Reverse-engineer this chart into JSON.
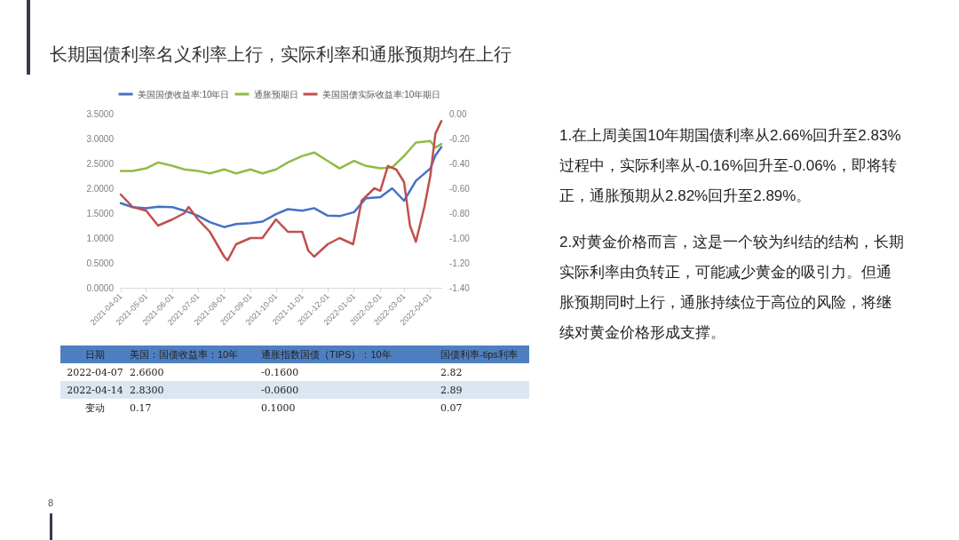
{
  "chart_data": [
    {
      "type": "line",
      "title": "长期国债利率名义利率上行，实际利率和通胀预期均在上行",
      "x": [
        "2021-04-01",
        "2021-04-15",
        "2021-05-01",
        "2021-05-15",
        "2021-06-01",
        "2021-06-15",
        "2021-07-01",
        "2021-07-15",
        "2021-08-01",
        "2021-08-15",
        "2021-09-01",
        "2021-09-15",
        "2021-10-01",
        "2021-10-15",
        "2021-11-01",
        "2021-11-15",
        "2021-12-01",
        "2021-12-15",
        "2022-01-01",
        "2022-01-15",
        "2022-02-01",
        "2022-02-15",
        "2022-03-01",
        "2022-03-15",
        "2022-04-01",
        "2022-04-07",
        "2022-04-14"
      ],
      "series": [
        {
          "name": "美国国债收益率:10年日",
          "color": "#4472c4",
          "values": [
            1.7,
            1.62,
            1.6,
            1.63,
            1.62,
            1.55,
            1.45,
            1.32,
            1.22,
            1.28,
            1.3,
            1.33,
            1.48,
            1.58,
            1.55,
            1.6,
            1.45,
            1.44,
            1.52,
            1.8,
            1.82,
            2.0,
            1.75,
            2.15,
            2.4,
            2.66,
            2.83
          ]
        },
        {
          "name": "通胀预期日",
          "color": "#8fbc45",
          "values": [
            2.35,
            2.35,
            2.4,
            2.52,
            2.45,
            2.38,
            2.35,
            2.3,
            2.38,
            2.3,
            2.38,
            2.3,
            2.38,
            2.52,
            2.65,
            2.72,
            2.55,
            2.4,
            2.55,
            2.45,
            2.4,
            2.42,
            2.65,
            2.92,
            2.95,
            2.82,
            2.89
          ]
        },
        {
          "name": "美国国债实际收益率:10年期日",
          "color": "#c0504d",
          "axis": "y2",
          "x": [
            "2021-04-01",
            "2021-04-15",
            "2021-05-01",
            "2021-05-15",
            "2021-06-01",
            "2021-06-15",
            "2021-06-20",
            "2021-07-01",
            "2021-07-15",
            "2021-08-01",
            "2021-08-05",
            "2021-08-15",
            "2021-09-01",
            "2021-09-15",
            "2021-10-01",
            "2021-10-15",
            "2021-11-01",
            "2021-11-08",
            "2021-11-15",
            "2021-12-01",
            "2021-12-15",
            "2021-12-31",
            "2022-01-10",
            "2022-01-25",
            "2022-02-01",
            "2022-02-10",
            "2022-02-20",
            "2022-03-01",
            "2022-03-08",
            "2022-03-15",
            "2022-03-25",
            "2022-04-01",
            "2022-04-07",
            "2022-04-14"
          ],
          "values": [
            -0.65,
            -0.75,
            -0.78,
            -0.9,
            -0.85,
            -0.8,
            -0.75,
            -0.85,
            -0.95,
            -1.15,
            -1.18,
            -1.05,
            -1.0,
            -1.0,
            -0.85,
            -0.95,
            -0.95,
            -1.1,
            -1.15,
            -1.05,
            -1.0,
            -1.05,
            -0.7,
            -0.6,
            -0.62,
            -0.42,
            -0.45,
            -0.55,
            -0.9,
            -1.03,
            -0.75,
            -0.5,
            -0.16,
            -0.06
          ]
        }
      ],
      "xlim": [
        "2021-04-01",
        "2022-04-15"
      ],
      "xticks": [
        "2021-04-01",
        "2021-05-01",
        "2021-06-01",
        "2021-07-01",
        "2021-08-01",
        "2021-09-01",
        "2021-10-01",
        "2021-11-01",
        "2021-12-01",
        "2022-01-01",
        "2022-02-01",
        "2022-03-01",
        "2022-04-01"
      ],
      "ylim": [
        0,
        3.5
      ],
      "yticks": [
        {
          "value": 0,
          "label": "0.0000"
        },
        {
          "value": 0.5,
          "label": "0.5000"
        },
        {
          "value": 1,
          "label": "1.0000"
        },
        {
          "value": 1.5,
          "label": "1.5000"
        },
        {
          "value": 2,
          "label": "2.0000"
        },
        {
          "value": 2.5,
          "label": "2.5000"
        },
        {
          "value": 3,
          "label": "3.0000"
        },
        {
          "value": 3.5,
          "label": "3.5000"
        }
      ],
      "y2lim": [
        -1.4,
        0
      ],
      "y2ticks": [
        {
          "value": -1.4,
          "label": "-1.40"
        },
        {
          "value": -1.2,
          "label": "-1.20"
        },
        {
          "value": -1,
          "label": "-1.00"
        },
        {
          "value": -0.8,
          "label": "-0.80"
        },
        {
          "value": -0.6,
          "label": "-0.60"
        },
        {
          "value": -0.4,
          "label": "-0.40"
        },
        {
          "value": -0.2,
          "label": "-0.20"
        },
        {
          "value": 0,
          "label": "0.00"
        }
      ],
      "legend": "top"
    },
    {
      "type": "other",
      "annotations": [
        "日期",
        "美国：国债收益率：10年",
        "通胀指数国债（TIPS）：10年",
        "国债利率-tips利率",
        "2022-04-07",
        "2.6600",
        "-0.1600",
        "2.82",
        "2022-04-14",
        "2.8300",
        "-0.0600",
        "2.89",
        "变动",
        "0.17",
        "0.1000",
        "0.07"
      ]
    },
    {
      "type": "other",
      "annotations": [
        "1.在上周美国10年期国债利率从2.66%回升至2.83%过程中，实际利率从-0.16%回升至-0.06%，即将转正，通胀预期从2.82%回升至2.89%。",
        "2.对黄金价格而言，这是一个较为纠结的结构，长期实际利率由负转正，可能减少黄金的吸引力。但通胀预期同时上行，通胀持续位于高位的风险，将继续对黄金价格形成支撑。",
        "8"
      ]
    }
  ]
}
